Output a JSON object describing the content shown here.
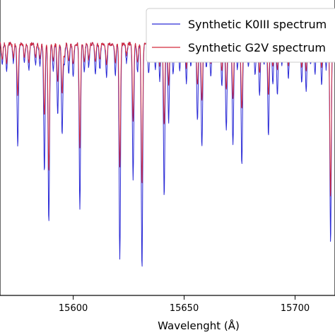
{
  "chart_data": {
    "type": "line",
    "title": "",
    "xlabel": "Wavelenght (Å)",
    "ylabel": "",
    "xlim": [
      15567,
      15718
    ],
    "ylim": [
      0.0,
      1.16
    ],
    "xticks": [
      15600,
      15650,
      15700
    ],
    "xtick_labels": [
      "15600",
      "15650",
      "15700"
    ],
    "grid": false,
    "legend_position": "top-right",
    "series": [
      {
        "name": "Synthetic K0III spectrum",
        "color": "#2a2ad6",
        "continuum": 1.0,
        "lines": [
          [
            15568,
            0.92
          ],
          [
            15570,
            0.9
          ],
          [
            15573,
            0.93
          ],
          [
            15575,
            0.6
          ],
          [
            15578,
            0.93
          ],
          [
            15580,
            0.9
          ],
          [
            15583,
            0.92
          ],
          [
            15585,
            0.91
          ],
          [
            15587,
            0.5
          ],
          [
            15589,
            0.3
          ],
          [
            15591,
            0.89
          ],
          [
            15593,
            0.72
          ],
          [
            15595,
            0.64
          ],
          [
            15596,
            0.92
          ],
          [
            15598,
            0.88
          ],
          [
            15600,
            0.87
          ],
          [
            15603,
            0.36
          ],
          [
            15605,
            0.89
          ],
          [
            15607,
            0.91
          ],
          [
            15610,
            0.88
          ],
          [
            15612,
            0.9
          ],
          [
            15615,
            0.87
          ],
          [
            15619,
            0.88
          ],
          [
            15621,
            0.16
          ],
          [
            15624,
            0.93
          ],
          [
            15627,
            0.47
          ],
          [
            15629,
            0.89
          ],
          [
            15631,
            0.12
          ],
          [
            15634,
            0.88
          ],
          [
            15637,
            0.9
          ],
          [
            15639,
            0.86
          ],
          [
            15641,
            0.4
          ],
          [
            15643,
            0.69
          ],
          [
            15645,
            0.88
          ],
          [
            15648,
            0.9
          ],
          [
            15651,
            0.85
          ],
          [
            15653,
            0.92
          ],
          [
            15656,
            0.7
          ],
          [
            15658,
            0.6
          ],
          [
            15660,
            0.91
          ],
          [
            15662,
            0.87
          ],
          [
            15664,
            0.93
          ],
          [
            15667,
            0.84
          ],
          [
            15669,
            0.66
          ],
          [
            15672,
            0.6
          ],
          [
            15674,
            0.9
          ],
          [
            15676,
            0.52
          ],
          [
            15679,
            0.91
          ],
          [
            15682,
            0.88
          ],
          [
            15684,
            0.8
          ],
          [
            15686,
            0.92
          ],
          [
            15688,
            0.64
          ],
          [
            15690,
            0.84
          ],
          [
            15692,
            0.8
          ],
          [
            15694,
            0.92
          ],
          [
            15697,
            0.87
          ],
          [
            15700,
            0.93
          ],
          [
            15703,
            0.85
          ],
          [
            15705,
            0.82
          ],
          [
            15707,
            0.92
          ],
          [
            15709,
            0.88
          ],
          [
            15712,
            0.84
          ],
          [
            15714,
            0.9
          ],
          [
            15716,
            0.22
          ]
        ]
      },
      {
        "name": "Synthetic G2V spectrum",
        "color": "#d42a3c",
        "continuum": 1.0,
        "lines": [
          [
            15568,
            0.94
          ],
          [
            15570,
            0.93
          ],
          [
            15573,
            0.95
          ],
          [
            15575,
            0.8
          ],
          [
            15578,
            0.95
          ],
          [
            15580,
            0.93
          ],
          [
            15583,
            0.95
          ],
          [
            15585,
            0.94
          ],
          [
            15587,
            0.72
          ],
          [
            15589,
            0.5
          ],
          [
            15591,
            0.93
          ],
          [
            15593,
            0.85
          ],
          [
            15595,
            0.8
          ],
          [
            15596,
            0.95
          ],
          [
            15598,
            0.93
          ],
          [
            15600,
            0.92
          ],
          [
            15603,
            0.6
          ],
          [
            15605,
            0.93
          ],
          [
            15607,
            0.94
          ],
          [
            15610,
            0.93
          ],
          [
            15612,
            0.94
          ],
          [
            15615,
            0.92
          ],
          [
            15619,
            0.93
          ],
          [
            15621,
            0.52
          ],
          [
            15624,
            0.96
          ],
          [
            15627,
            0.7
          ],
          [
            15629,
            0.93
          ],
          [
            15631,
            0.45
          ],
          [
            15634,
            0.93
          ],
          [
            15637,
            0.94
          ],
          [
            15639,
            0.92
          ],
          [
            15641,
            0.68
          ],
          [
            15643,
            0.84
          ],
          [
            15645,
            0.93
          ],
          [
            15648,
            0.94
          ],
          [
            15651,
            0.91
          ],
          [
            15653,
            0.95
          ],
          [
            15656,
            0.84
          ],
          [
            15658,
            0.78
          ],
          [
            15660,
            0.95
          ],
          [
            15662,
            0.92
          ],
          [
            15664,
            0.96
          ],
          [
            15667,
            0.9
          ],
          [
            15669,
            0.82
          ],
          [
            15672,
            0.78
          ],
          [
            15674,
            0.94
          ],
          [
            15676,
            0.74
          ],
          [
            15679,
            0.95
          ],
          [
            15682,
            0.93
          ],
          [
            15684,
            0.89
          ],
          [
            15686,
            0.95
          ],
          [
            15688,
            0.8
          ],
          [
            15690,
            0.91
          ],
          [
            15692,
            0.9
          ],
          [
            15694,
            0.95
          ],
          [
            15697,
            0.92
          ],
          [
            15700,
            0.95
          ],
          [
            15703,
            0.91
          ],
          [
            15705,
            0.9
          ],
          [
            15707,
            0.95
          ],
          [
            15709,
            0.93
          ],
          [
            15712,
            0.91
          ],
          [
            15714,
            0.94
          ],
          [
            15716,
            0.4
          ]
        ]
      }
    ]
  }
}
